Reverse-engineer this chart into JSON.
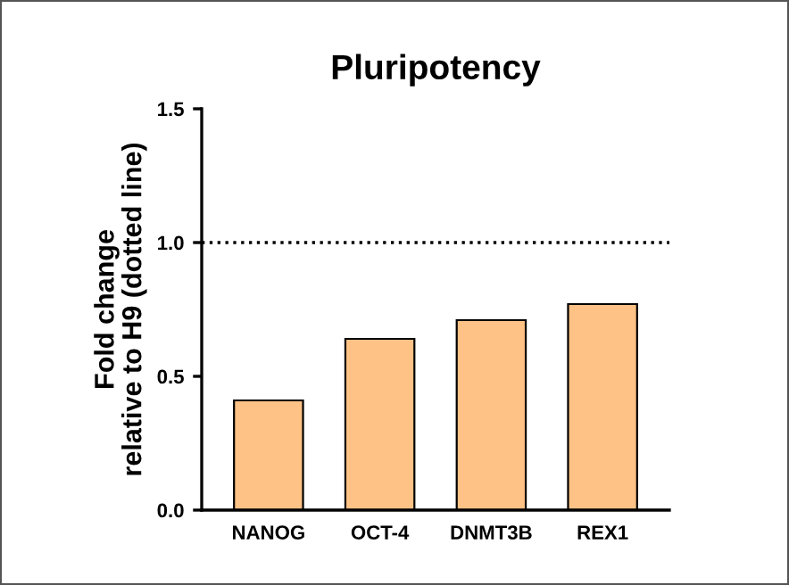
{
  "chart_data": {
    "type": "bar",
    "title": "Pluripotency",
    "ylabel": "Fold change\nrelative to H9 (dotted line)",
    "categories": [
      "NANOG",
      "OCT-4",
      "DNMT3B",
      "REX1"
    ],
    "values": [
      0.41,
      0.64,
      0.71,
      0.77
    ],
    "color": "#ffc286",
    "ylim": [
      0,
      1.5
    ],
    "yticks": [
      {
        "value": 0,
        "label": "0.0"
      },
      {
        "value": 0.5,
        "label": "0.5"
      },
      {
        "value": 1,
        "label": "1.0"
      },
      {
        "value": 1.5,
        "label": "1.5"
      }
    ],
    "ref_lines": [
      {
        "axis": "y",
        "value": 1,
        "color": "#000000",
        "line_style": "dotted"
      }
    ],
    "grid": false,
    "legend": false
  }
}
